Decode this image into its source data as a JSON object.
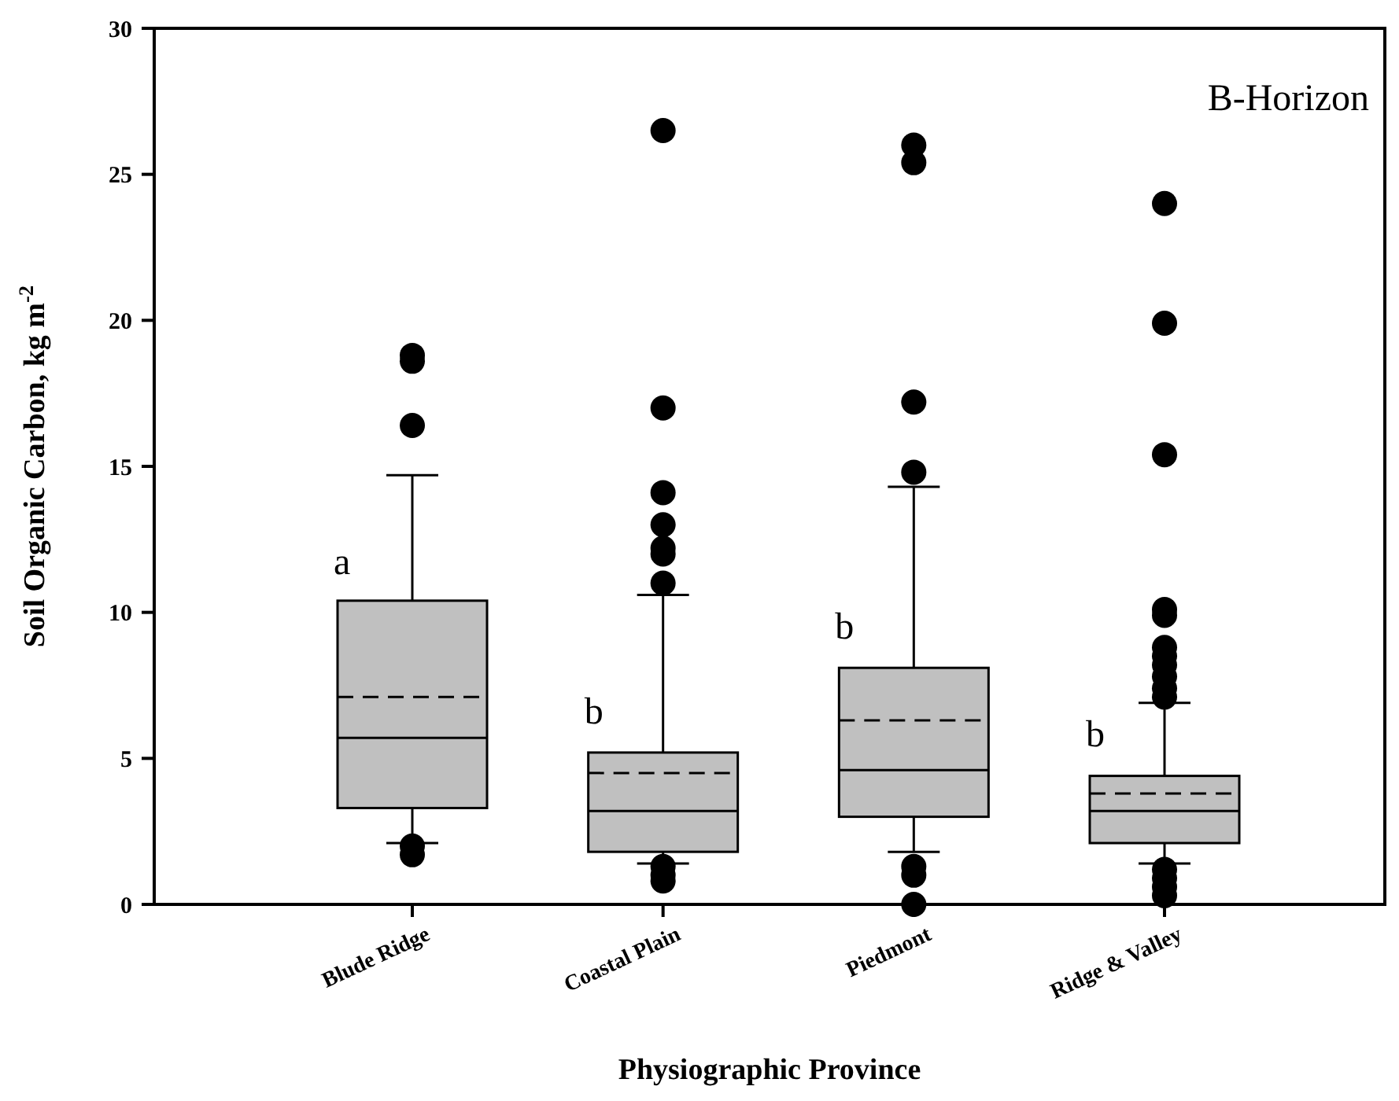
{
  "chart_data": {
    "type": "box",
    "xlabel": "Physiographic Province",
    "ylabel": "Soil Organic Carbon, kg m$^{-2}$",
    "categories": [
      "Blude Ridge",
      "Coastal Plain",
      "Piedmont",
      "Ridge & Valley"
    ],
    "boxes": [
      {
        "low": 2.1,
        "q1": 3.3,
        "median": 5.7,
        "q3": 10.4,
        "high": 14.7,
        "mean": 7.1,
        "outliers": [
          18.8,
          18.6,
          16.4,
          2.0,
          1.7
        ]
      },
      {
        "low": 1.4,
        "q1": 1.8,
        "median": 3.2,
        "q3": 5.2,
        "high": 10.6,
        "mean": 4.5,
        "outliers": [
          26.5,
          17.0,
          14.1,
          13.0,
          12.2,
          12.0,
          11.0,
          1.3,
          1.0,
          0.8
        ]
      },
      {
        "low": 1.8,
        "q1": 3.0,
        "median": 4.6,
        "q3": 8.1,
        "high": 14.3,
        "mean": 6.3,
        "outliers": [
          26.0,
          25.4,
          17.2,
          14.8,
          1.3,
          1.0,
          0.0
        ]
      },
      {
        "low": 1.4,
        "q1": 2.1,
        "median": 3.2,
        "q3": 4.4,
        "high": 6.9,
        "mean": 3.8,
        "outliers": [
          24.0,
          19.9,
          15.4,
          10.1,
          9.9,
          8.8,
          8.5,
          8.2,
          7.8,
          7.4,
          7.1,
          1.2,
          0.9,
          0.6,
          0.3
        ]
      }
    ],
    "color": "#c0c0c0",
    "ylim": [
      0,
      30
    ],
    "yticks": [
      0,
      5,
      10,
      15,
      20,
      25,
      30
    ],
    "grid": false,
    "marker": "circle",
    "annotations": [
      {
        "text": "a",
        "x": "Blude Ridge",
        "y": 11.3
      },
      {
        "text": "b",
        "x": "Coastal Plain",
        "y": 6.2
      },
      {
        "text": "b",
        "x": "Piedmont",
        "y": 9.1
      },
      {
        "text": "b",
        "x": "Ridge & Valley",
        "y": 5.4
      },
      "B-Horizon"
    ]
  }
}
